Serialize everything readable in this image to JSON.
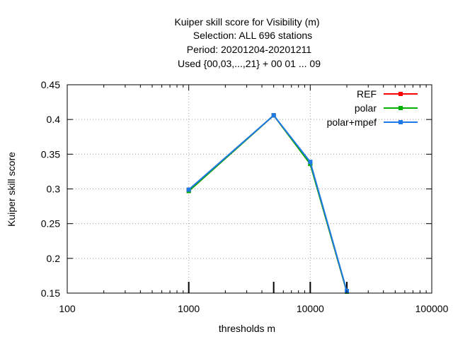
{
  "chart_data": {
    "type": "line",
    "title_lines": [
      "Kuiper skill score  for Visibility (m)",
      "Selection: ALL    696 stations",
      "Period: 20201204-20201211",
      "Used {00,03,...,21} + 00 01 ... 09"
    ],
    "xlabel": "thresholds m",
    "ylabel": "Kuiper skill score",
    "x_scale": "log",
    "xlim": [
      100,
      100000
    ],
    "ylim": [
      0.15,
      0.45
    ],
    "x_ticks": [
      100,
      1000,
      10000,
      100000
    ],
    "x_tick_labels": [
      "100",
      "1000",
      "10000",
      "100000"
    ],
    "y_ticks": [
      0.15,
      0.2,
      0.25,
      0.3,
      0.35,
      0.4,
      0.45
    ],
    "y_tick_labels": [
      "0.15",
      "0.2",
      "0.25",
      "0.3",
      "0.35",
      "0.4",
      "0.45"
    ],
    "grid": true,
    "legend_position": "top-right",
    "threshold_marks": [
      1000,
      5000,
      10000,
      20000
    ],
    "x": [
      1000,
      5000,
      10000,
      20000
    ],
    "series": [
      {
        "name": "REF",
        "color": "#ff0000",
        "values": [
          0.297,
          0.406,
          0.336,
          0.152
        ]
      },
      {
        "name": "polar",
        "color": "#00b000",
        "values": [
          0.297,
          0.406,
          0.336,
          0.152
        ]
      },
      {
        "name": "polar+mpef",
        "color": "#1e78e6",
        "values": [
          0.299,
          0.406,
          0.339,
          0.153
        ]
      }
    ]
  }
}
